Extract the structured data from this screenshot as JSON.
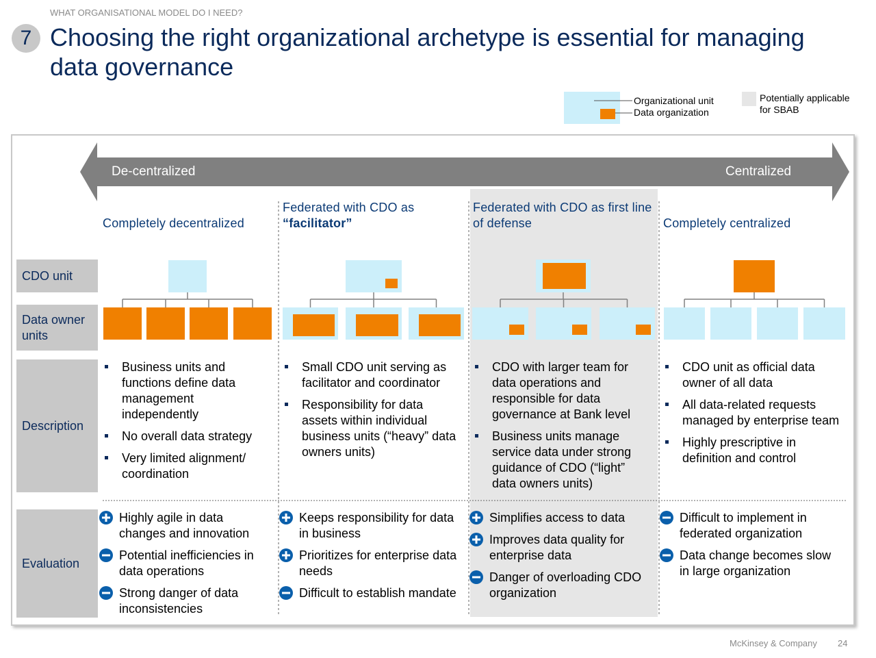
{
  "header": {
    "section": "WHAT ORGANISATIONAL MODEL DO I NEED?",
    "number": "7",
    "title": "Choosing the right organizational archetype is essential for managing data governance"
  },
  "legend": {
    "org_unit": "Organizational unit",
    "data_org": "Data organization",
    "applicable": "Potentially applicable for SBAB"
  },
  "arrow": {
    "left": "De-centralized",
    "right": "Centralized"
  },
  "rows": [
    "CDO unit",
    "Data owner units",
    "Description",
    "Evaluation"
  ],
  "columns": [
    {
      "title": "Completely decentralized",
      "description": [
        "Business units and functions define data management independently",
        "No overall data strategy",
        "Very limited alignment/ coordination"
      ],
      "evaluation": [
        {
          "sign": "plus",
          "text": "Highly agile in data changes and innovation"
        },
        {
          "sign": "minus",
          "text": "Potential inefficiencies in data operations"
        },
        {
          "sign": "minus",
          "text": "Strong danger of data inconsistencies"
        }
      ]
    },
    {
      "title": "Federated with CDO as",
      "title_bold": "“facilitator”",
      "description": [
        "Small CDO unit  serving as facilitator and coordinator",
        "Responsibility for data assets within individual business units (“heavy” data owners units)"
      ],
      "evaluation": [
        {
          "sign": "plus",
          "text": "Keeps responsibility for data in business"
        },
        {
          "sign": "plus",
          "text": "Prioritizes for enterprise data needs"
        },
        {
          "sign": "minus",
          "text": "Difficult to establish mandate"
        }
      ]
    },
    {
      "title": "Federated with CDO as first line of defense",
      "description": [
        "CDO with larger team for data operations and responsible for data governance at Bank level",
        "Business units manage service data under strong guidance of CDO (“light” data owners units)"
      ],
      "evaluation": [
        {
          "sign": "plus",
          "text": "Simplifies access to data"
        },
        {
          "sign": "plus",
          "text": "Improves data quality for enterprise data"
        },
        {
          "sign": "minus",
          "text": "Danger of overloading CDO organization"
        }
      ]
    },
    {
      "title": "Completely centralized",
      "description": [
        "CDO unit as official data owner of all data",
        "All data-related requests managed by enterprise team",
        "Highly prescriptive in definition and control"
      ],
      "evaluation": [
        {
          "sign": "minus",
          "text": "Difficult to implement in federated organization"
        },
        {
          "sign": "minus",
          "text": "Data change becomes slow in large organization"
        }
      ]
    }
  ],
  "footer": {
    "company": "McKinsey & Company",
    "page": "24"
  }
}
